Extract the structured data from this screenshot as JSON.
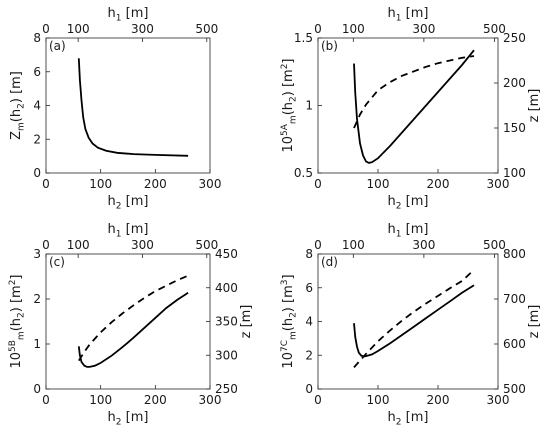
{
  "chart_data": [
    {
      "type": "line",
      "panel_label": "(a)",
      "xlabel": "h_2 [m]",
      "xlabel_top": "h_1 [m]",
      "ylabel": "Z_m(h_2) [m]",
      "ylabel_right": "",
      "xlim": [
        0,
        300
      ],
      "xticks": [
        0,
        100,
        200,
        300
      ],
      "xlim_top": [
        0,
        510
      ],
      "xticks_top": [
        0,
        100,
        300,
        500
      ],
      "ylim": [
        0,
        8
      ],
      "yticks": [
        0,
        2,
        4,
        6,
        8
      ],
      "series": [
        {
          "axis": "left",
          "style": "solid",
          "x": [
            60,
            62,
            65,
            68,
            72,
            78,
            85,
            95,
            110,
            130,
            160,
            200,
            260
          ],
          "y": [
            6.8,
            5.5,
            4.3,
            3.3,
            2.6,
            2.1,
            1.75,
            1.5,
            1.32,
            1.2,
            1.12,
            1.07,
            1.02
          ]
        }
      ]
    },
    {
      "type": "line",
      "panel_label": "(b)",
      "xlabel": "h_2 [m]",
      "xlabel_top": "h_1 [m]",
      "ylabel": "10^5A_m(h_2) [m^2]",
      "ylabel_right": "z [m]",
      "xlim": [
        0,
        300
      ],
      "xticks": [
        0,
        100,
        200,
        300
      ],
      "xlim_top": [
        0,
        510
      ],
      "xticks_top": [
        0,
        100,
        300,
        500
      ],
      "ylim": [
        0.5,
        1.5
      ],
      "yticks": [
        0.5,
        1,
        1.5
      ],
      "ylim_right": [
        100,
        250
      ],
      "yticks_right": [
        100,
        150,
        200,
        250
      ],
      "series": [
        {
          "axis": "left",
          "style": "solid",
          "x": [
            60,
            62,
            65,
            70,
            75,
            80,
            85,
            90,
            100,
            120,
            140,
            160,
            180,
            200,
            220,
            240,
            260
          ],
          "y": [
            1.31,
            1.1,
            0.9,
            0.72,
            0.63,
            0.585,
            0.575,
            0.58,
            0.61,
            0.7,
            0.8,
            0.9,
            1.0,
            1.1,
            1.2,
            1.3,
            1.41
          ]
        },
        {
          "axis": "right",
          "style": "dashed",
          "x": [
            60,
            70,
            80,
            100,
            120,
            140,
            160,
            180,
            200,
            220,
            240,
            260
          ],
          "y": [
            150,
            165,
            176,
            192,
            201,
            208,
            213,
            218,
            222,
            225,
            228,
            230
          ]
        }
      ]
    },
    {
      "type": "line",
      "panel_label": "(c)",
      "xlabel": "h_2 [m]",
      "xlabel_top": "h_1 [m]",
      "ylabel": "10^5B_m(h_2) [m^2]",
      "ylabel_right": "z [m]",
      "xlim": [
        0,
        300
      ],
      "xticks": [
        0,
        100,
        200,
        300
      ],
      "xlim_top": [
        0,
        510
      ],
      "xticks_top": [
        0,
        100,
        300,
        500
      ],
      "ylim": [
        0,
        3
      ],
      "yticks": [
        0,
        1,
        2,
        3
      ],
      "ylim_right": [
        250,
        450
      ],
      "yticks_right": [
        250,
        300,
        350,
        400,
        450
      ],
      "series": [
        {
          "axis": "left",
          "style": "solid",
          "x": [
            60,
            62,
            65,
            70,
            75,
            80,
            90,
            100,
            120,
            140,
            160,
            180,
            200,
            220,
            240,
            260
          ],
          "y": [
            0.95,
            0.75,
            0.6,
            0.52,
            0.49,
            0.49,
            0.52,
            0.58,
            0.74,
            0.93,
            1.14,
            1.36,
            1.58,
            1.8,
            1.98,
            2.14
          ]
        },
        {
          "axis": "right",
          "style": "dashed",
          "x": [
            60,
            70,
            80,
            100,
            120,
            140,
            160,
            180,
            200,
            220,
            240,
            260
          ],
          "y": [
            292,
            305,
            316,
            334,
            349,
            362,
            374,
            385,
            395,
            403,
            411,
            418
          ]
        }
      ]
    },
    {
      "type": "line",
      "panel_label": "(d)",
      "xlabel": "h_2 [m]",
      "xlabel_top": "h_1 [m]",
      "ylabel": "10^7C_m(h_2) [m^3]",
      "ylabel_right": "z [m]",
      "xlim": [
        0,
        300
      ],
      "xticks": [
        0,
        100,
        200,
        300
      ],
      "xlim_top": [
        0,
        510
      ],
      "xticks_top": [
        0,
        100,
        300,
        500
      ],
      "ylim": [
        0,
        8
      ],
      "yticks": [
        0,
        2,
        4,
        6,
        8
      ],
      "ylim_right": [
        500,
        800
      ],
      "yticks_right": [
        500,
        600,
        700,
        800
      ],
      "series": [
        {
          "axis": "left",
          "style": "solid",
          "x": [
            60,
            62,
            65,
            68,
            72,
            76,
            80,
            90,
            100,
            120,
            140,
            160,
            180,
            200,
            220,
            240,
            260
          ],
          "y": [
            3.9,
            3.1,
            2.5,
            2.15,
            1.98,
            1.93,
            1.95,
            2.05,
            2.25,
            2.7,
            3.2,
            3.7,
            4.2,
            4.7,
            5.2,
            5.7,
            6.15
          ]
        },
        {
          "axis": "right",
          "style": "dashed",
          "x": [
            60,
            70,
            80,
            100,
            120,
            140,
            160,
            180,
            200,
            220,
            240,
            260
          ],
          "y": [
            548,
            563,
            578,
            606,
            630,
            652,
            672,
            690,
            707,
            724,
            740,
            765
          ]
        }
      ]
    }
  ]
}
